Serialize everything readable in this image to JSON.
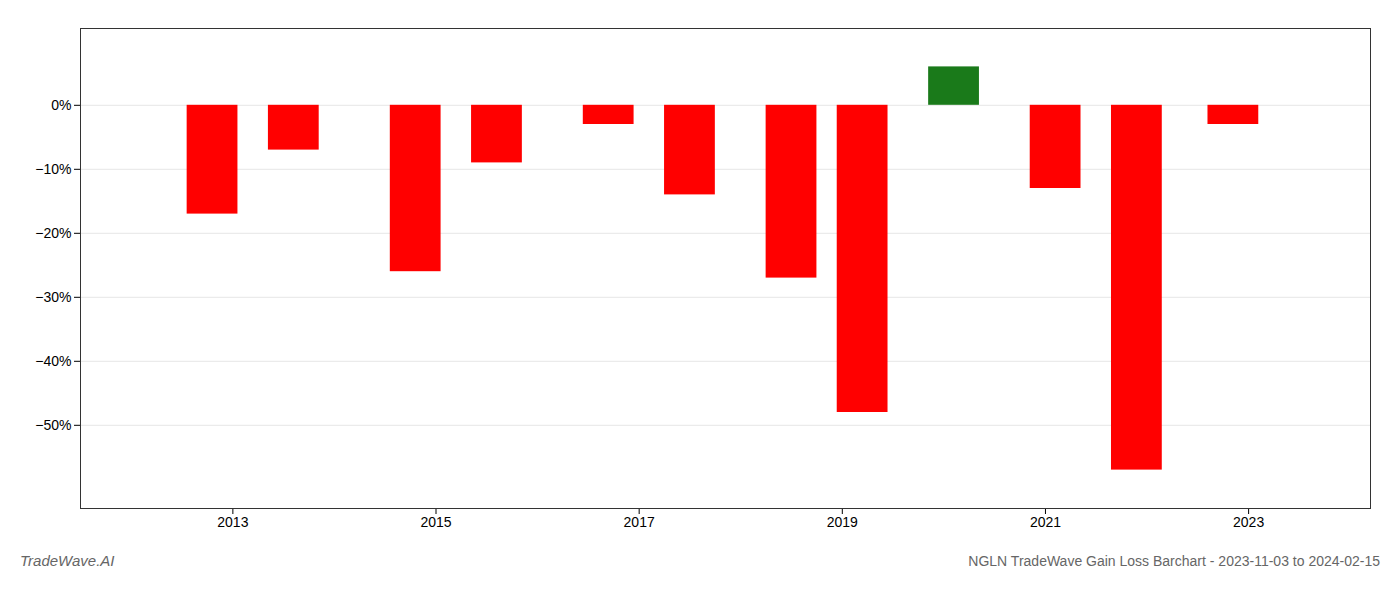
{
  "chart_data": {
    "type": "bar",
    "title": "NGLN TradeWave Gain Loss Barchart - 2023-11-03 to 2024-02-15",
    "annotations": [
      "TradeWave.AI"
    ],
    "x": [
      2012.8,
      2013.6,
      2014.8,
      2015.6,
      2016.7,
      2017.5,
      2018.5,
      2019.2,
      2020.1,
      2021.1,
      2021.9,
      2022.85
    ],
    "values": [
      -17,
      -7,
      -26,
      -9,
      -3,
      -14,
      -27,
      -48,
      6,
      -13,
      -57,
      -3
    ],
    "colors": [
      "#ff0000",
      "#ff0000",
      "#ff0000",
      "#ff0000",
      "#ff0000",
      "#ff0000",
      "#ff0000",
      "#ff0000",
      "#1a7a1a",
      "#ff0000",
      "#ff0000",
      "#ff0000"
    ],
    "xlim": [
      2011.5,
      2024.2
    ],
    "ylim": [
      -63,
      12
    ],
    "xticks": [
      2013,
      2015,
      2017,
      2019,
      2021,
      2023
    ],
    "yticks": [
      {
        "value": 0,
        "label": "0%"
      },
      {
        "value": -10,
        "label": "−10%"
      },
      {
        "value": -20,
        "label": "−20%"
      },
      {
        "value": -30,
        "label": "−30%"
      },
      {
        "value": -40,
        "label": "−40%"
      },
      {
        "value": -50,
        "label": "−50%"
      }
    ],
    "grid": true
  }
}
